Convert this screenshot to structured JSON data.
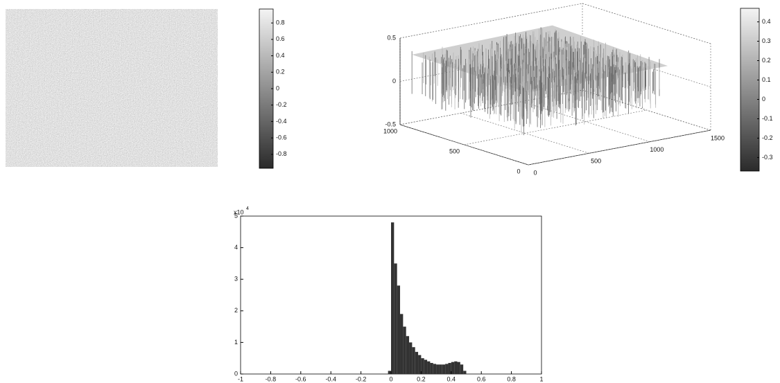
{
  "chart_data": [
    {
      "type": "image",
      "colorbar": {
        "lim": [
          -0.97,
          0.97
        ],
        "ticks": [
          0.8,
          0.6,
          0.4,
          0.2,
          0,
          -0.2,
          -0.4,
          -0.6,
          -0.8
        ]
      }
    },
    {
      "type": "surface",
      "xlim": [
        0,
        1500
      ],
      "xticks": [
        0,
        500,
        1000,
        1500
      ],
      "ylim": [
        0,
        1000
      ],
      "yticks": [
        0,
        500,
        1000
      ],
      "zlim": [
        -0.5,
        0.5
      ],
      "zticks": [
        -0.5,
        0,
        0.5
      ],
      "grid": true,
      "colorbar": {
        "lim": [
          -0.37,
          0.47
        ],
        "ticks": [
          0.4,
          0.3,
          0.2,
          0.1,
          0,
          -0.1,
          -0.2,
          -0.3
        ]
      }
    },
    {
      "type": "histogram",
      "bins": [
        -0.02,
        0,
        0.02,
        0.04,
        0.06,
        0.08,
        0.1,
        0.12,
        0.14,
        0.16,
        0.18,
        0.2,
        0.22,
        0.24,
        0.26,
        0.28,
        0.3,
        0.32,
        0.34,
        0.36,
        0.38,
        0.4,
        0.42,
        0.44,
        0.46,
        0.48,
        0.5
      ],
      "values": [
        0.1,
        4.8,
        3.5,
        2.8,
        1.9,
        1.5,
        1.2,
        1.0,
        0.85,
        0.7,
        0.6,
        0.5,
        0.45,
        0.4,
        0.35,
        0.32,
        0.3,
        0.3,
        0.3,
        0.32,
        0.35,
        0.38,
        0.4,
        0.38,
        0.3,
        0.1
      ],
      "color": "#333333",
      "xlim": [
        -1,
        1
      ],
      "xticks": [
        -1,
        -0.8,
        -0.6,
        -0.4,
        -0.2,
        0,
        0.2,
        0.4,
        0.6,
        0.8,
        1
      ],
      "ylim": [
        0,
        5
      ],
      "yticks": [
        0,
        1,
        2,
        3,
        4,
        5
      ],
      "y_multiplier": {
        "base": "x10",
        "exponent": "4"
      }
    }
  ]
}
